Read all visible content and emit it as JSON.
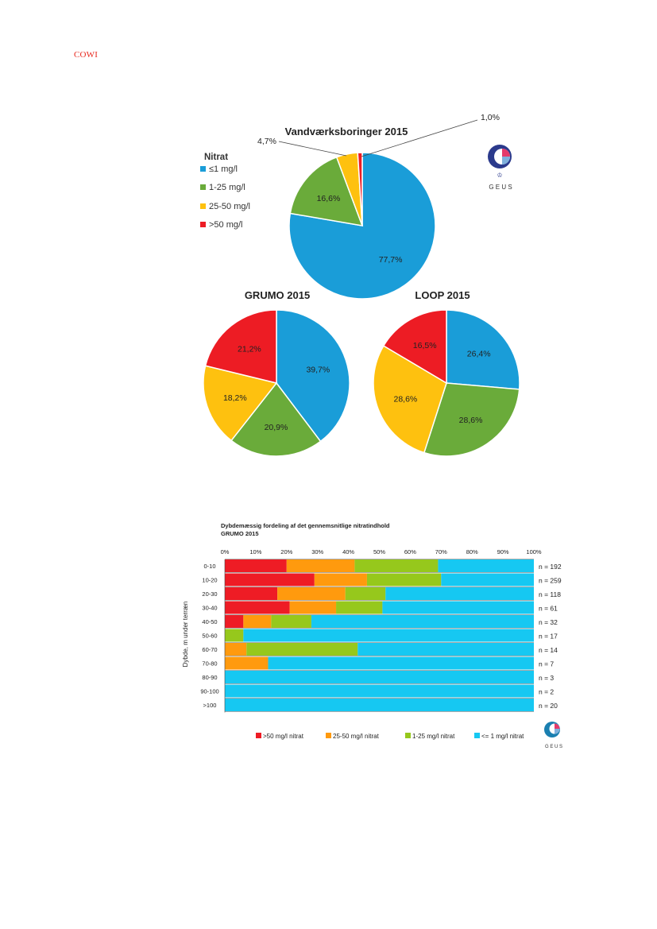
{
  "header": {
    "brand": "COWI"
  },
  "logo": {
    "text": "G E U S"
  },
  "colors": {
    "blue": "#1a9dd8",
    "green": "#6aab3a",
    "yellow": "#fec10f",
    "red": "#ed1c24",
    "bar_red": "#ee1c25",
    "bar_orange": "#ff9a0e",
    "bar_green": "#96c81c",
    "bar_blue": "#16c8f2"
  },
  "legend": {
    "title": "Nitrat",
    "items": [
      {
        "label": "≤1 mg/l",
        "color": "#1a9dd8"
      },
      {
        "label": "1-25 mg/l",
        "color": "#6aab3a"
      },
      {
        "label": "25-50 mg/l",
        "color": "#fec10f"
      },
      {
        "label": ">50 mg/l",
        "color": "#ed1c24"
      }
    ]
  },
  "chart_data": [
    {
      "type": "pie",
      "title": "Vandværksboringer 2015",
      "categories": [
        "≤1 mg/l",
        "1-25 mg/l",
        "25-50 mg/l",
        ">50 mg/l"
      ],
      "values": [
        77.7,
        16.6,
        4.7,
        1.0
      ],
      "labels": [
        "77,7%",
        "16,6%",
        "4,7%",
        "1,0%"
      ]
    },
    {
      "type": "pie",
      "title": "GRUMO 2015",
      "categories": [
        "≤1 mg/l",
        "1-25 mg/l",
        "25-50 mg/l",
        ">50 mg/l"
      ],
      "values": [
        39.7,
        20.9,
        18.2,
        21.2
      ],
      "labels": [
        "39,7%",
        "20,9%",
        "18,2%",
        "21,2%"
      ]
    },
    {
      "type": "pie",
      "title": "LOOP 2015",
      "categories": [
        "≤1 mg/l",
        "1-25 mg/l",
        "25-50 mg/l",
        ">50 mg/l"
      ],
      "values": [
        26.4,
        28.6,
        28.6,
        16.5
      ],
      "labels": [
        "26,4%",
        "28,6%",
        "28,6%",
        "16,5%"
      ]
    },
    {
      "type": "bar",
      "orientation": "horizontal-stacked-100",
      "title": "Dybdemæssig fordeling af det gennemsnitlige nitratindhold",
      "subtitle": "GRUMO 2015",
      "ylabel": "Dybde, m under terræn",
      "xticks": [
        "0%",
        "10%",
        "20%",
        "30%",
        "40%",
        "50%",
        "60%",
        "70%",
        "80%",
        "90%",
        "100%"
      ],
      "xlim": [
        0,
        100
      ],
      "categories": [
        "0-10",
        "10-20",
        "20-30",
        "30-40",
        "40-50",
        "50-60",
        "60-70",
        "70-80",
        "80-90",
        "90-100",
        ">100"
      ],
      "counts": [
        "n = 192",
        "n = 259",
        "n = 118",
        "n = 61",
        "n = 32",
        "n = 17",
        "n = 14",
        "n = 7",
        "n = 3",
        "n = 2",
        "n = 20"
      ],
      "series": [
        {
          "name": ">50 mg/l nitrat",
          "color": "#ee1c25",
          "values": [
            20,
            29,
            17,
            21,
            6,
            0,
            0,
            0,
            0,
            0,
            0
          ]
        },
        {
          "name": "25-50 mg/l nitrat",
          "color": "#ff9a0e",
          "values": [
            22,
            17,
            22,
            15,
            9,
            0,
            7,
            14,
            0,
            0,
            0
          ]
        },
        {
          "name": "1-25 mg/l nitrat",
          "color": "#96c81c",
          "values": [
            27,
            24,
            13,
            15,
            13,
            6,
            36,
            0,
            0,
            0,
            0
          ]
        },
        {
          "name": "<= 1 mg/l nitrat",
          "color": "#16c8f2",
          "values": [
            31,
            30,
            48,
            49,
            72,
            94,
            57,
            86,
            100,
            100,
            100
          ]
        }
      ]
    }
  ]
}
